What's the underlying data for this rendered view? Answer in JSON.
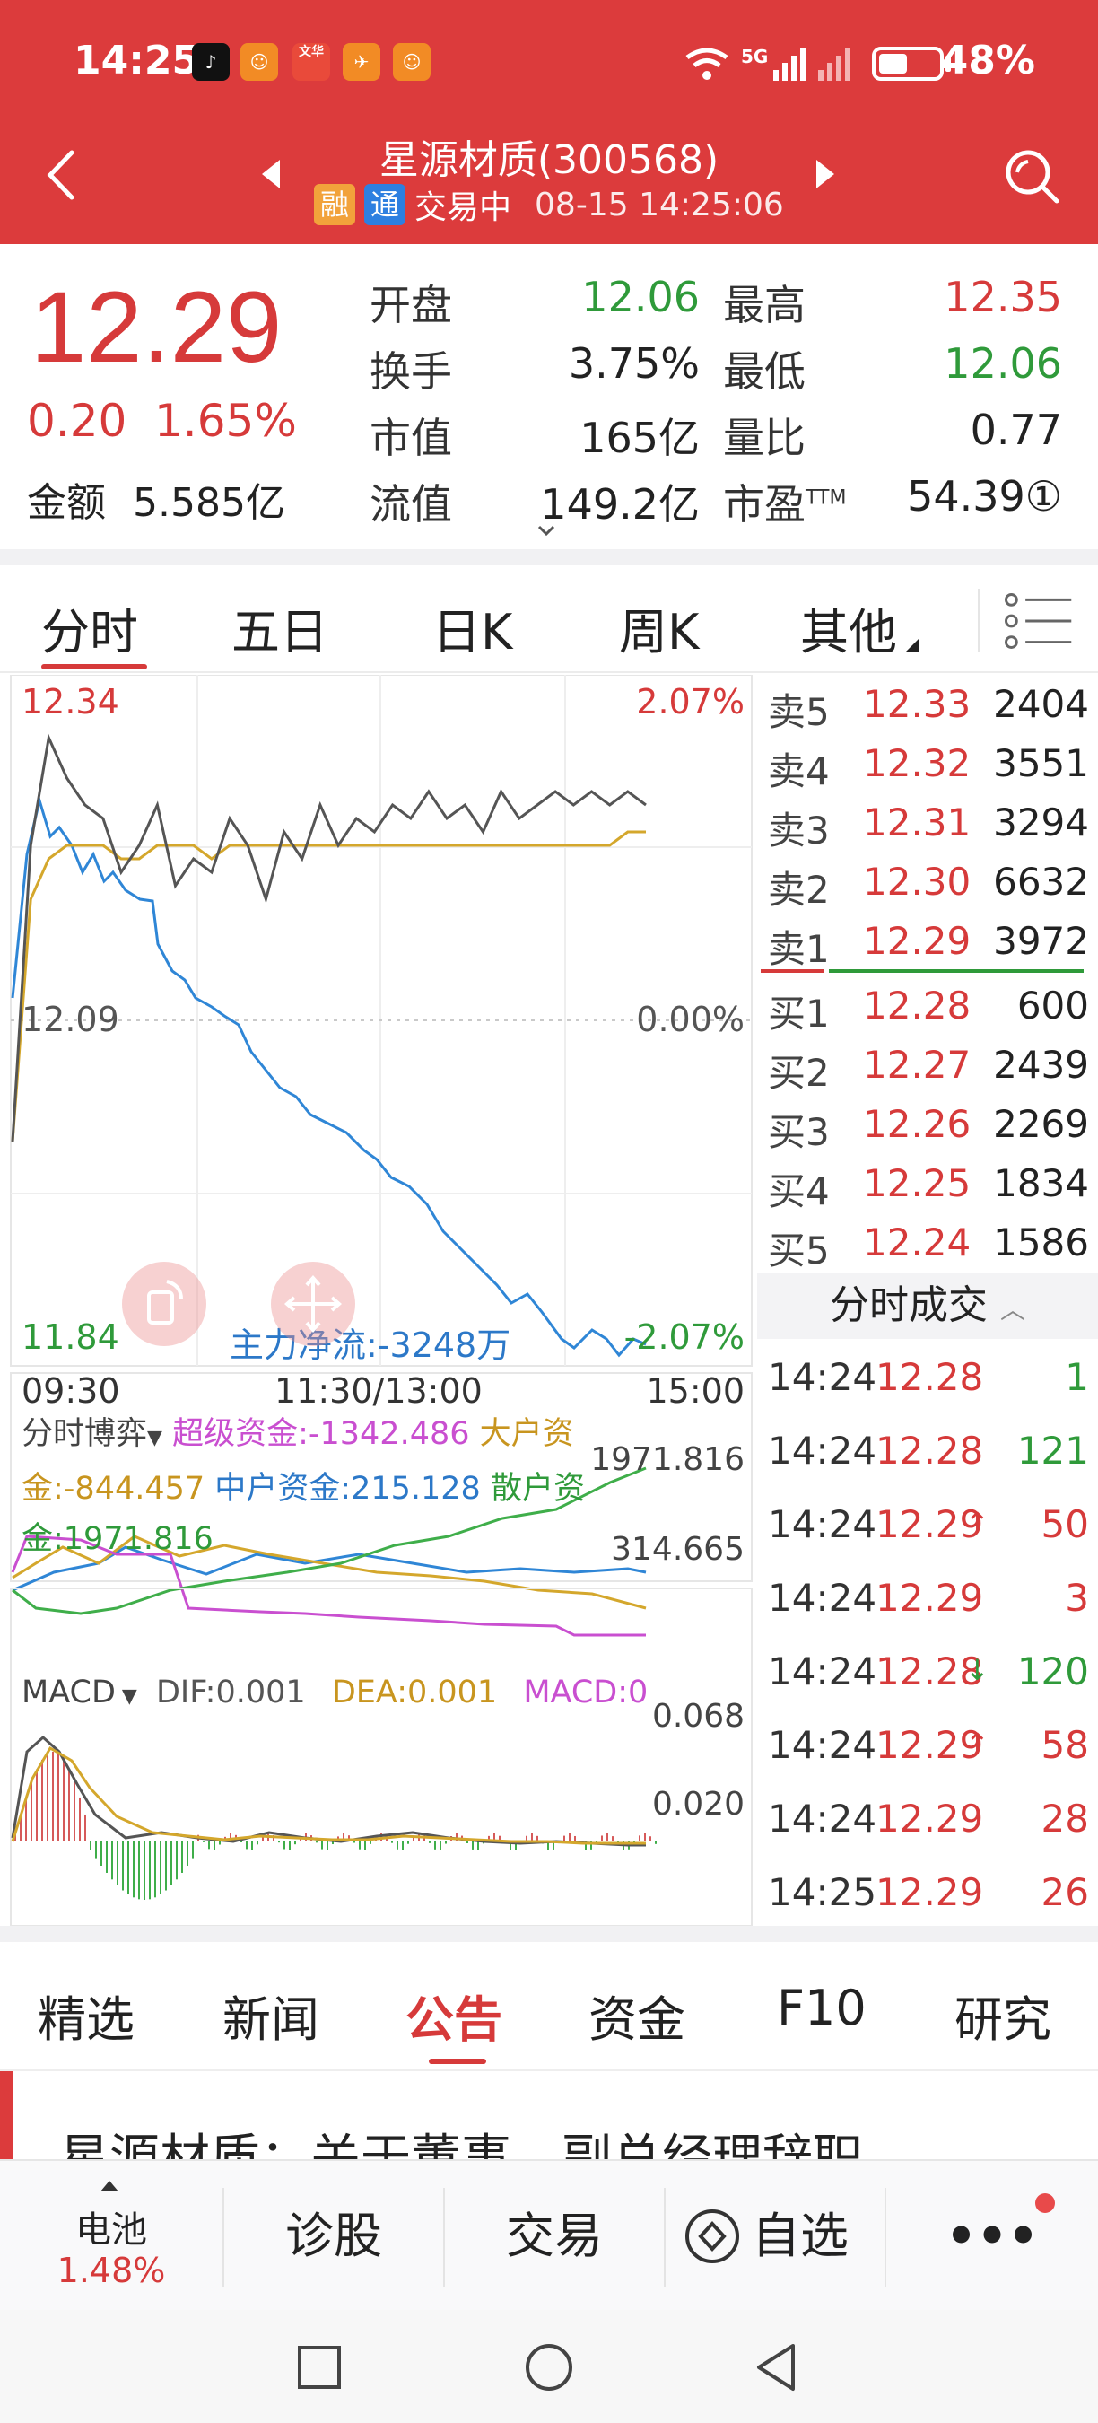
{
  "status": {
    "time": "14:25",
    "apps": [
      "TikTok",
      "Meituan",
      "文华财经",
      "Feishu",
      "Meituan"
    ],
    "network": "5G",
    "battery": "48%",
    "battery_fraction": 0.48
  },
  "header": {
    "title": "星源材质(300568)",
    "tag_rong": "融",
    "tag_tong": "通",
    "trading_status": "交易中",
    "datetime": "08-15 14:25:06",
    "back_icon": "chevron-left-icon",
    "search_icon": "search-icon"
  },
  "quote": {
    "price": "12.29",
    "change": "0.20",
    "change_pct": "1.65%",
    "amount_label": "金额",
    "amount": "5.585亿",
    "fields": [
      {
        "label": "开盘",
        "value": "12.06",
        "color": "#2f9a3a"
      },
      {
        "label": "最高",
        "value": "12.35",
        "color": "#d63a3a"
      },
      {
        "label": "换手",
        "value": "3.75%",
        "color": "#222222"
      },
      {
        "label": "最低",
        "value": "12.06",
        "color": "#2f9a3a"
      },
      {
        "label": "市值",
        "value": "165亿",
        "color": "#222222"
      },
      {
        "label": "量比",
        "value": "0.77",
        "color": "#222222"
      },
      {
        "label": "流值",
        "value": "149.2亿",
        "color": "#222222"
      },
      {
        "label": "市盈",
        "value": "54.39①",
        "color": "#222222"
      }
    ],
    "pe_superscript": "TTM"
  },
  "chart_tabs": [
    "分时",
    "五日",
    "日K",
    "周K",
    "其他"
  ],
  "chart": {
    "price_high": "12.34",
    "price_mid": "12.09",
    "price_low": "11.84",
    "pct_high": "2.07%",
    "pct_mid": "0.00%",
    "pct_low": "-2.07%",
    "main_flow": "主力净流:-3248万",
    "time_start": "09:30",
    "time_mid": "11:30/13:00",
    "time_end": "15:00"
  },
  "fund_panel": {
    "title": "分时博弈",
    "super": "超级资金:-1342.486",
    "big_line1": "大户资",
    "big_line2": "金:-844.457",
    "mid": "中户资金:215.128",
    "retail_line1": "散户资",
    "retail_line2": "金:1971.816",
    "axis_top": "1971.816",
    "axis_mid": "314.665"
  },
  "macd_panel": {
    "title": "MACD",
    "dif": "DIF:0.001",
    "dea": "DEA:0.001",
    "macd": "MACD:0",
    "axis_top": "0.068",
    "axis_mid": "0.020"
  },
  "chart_data": {
    "type": "line",
    "title": "",
    "x_range": [
      "09:30",
      "15:00"
    ],
    "ylim": [
      11.84,
      12.34
    ],
    "series": [
      {
        "values": [
          12.0,
          12.22,
          12.3,
          12.27,
          12.25,
          12.24,
          12.2,
          12.22,
          12.25,
          12.19,
          12.21,
          12.2,
          12.24,
          12.22,
          12.18,
          12.23,
          12.21,
          12.25,
          12.22,
          12.24,
          12.23,
          12.25,
          12.24,
          12.26,
          12.24,
          12.25,
          12.23,
          12.26,
          12.24,
          12.25,
          12.26,
          12.25,
          12.26,
          12.25,
          12.26,
          12.25
        ]
      },
      {
        "values": [
          12.0,
          12.18,
          12.21,
          12.22,
          12.22,
          12.22,
          12.21,
          12.21,
          12.22,
          12.22,
          12.22,
          12.21,
          12.22,
          12.22,
          12.22,
          12.22,
          12.22,
          12.22,
          12.22,
          12.22,
          12.22,
          12.22,
          12.22,
          12.22,
          12.22,
          12.22,
          12.22,
          12.22,
          12.22,
          12.22,
          12.22,
          12.22,
          12.22,
          12.22,
          12.23,
          12.23
        ]
      }
    ]
  },
  "order_book": {
    "asks": [
      {
        "label": "卖5",
        "price": "12.33",
        "vol": "2404"
      },
      {
        "label": "卖4",
        "price": "12.32",
        "vol": "3551"
      },
      {
        "label": "卖3",
        "price": "12.31",
        "vol": "3294"
      },
      {
        "label": "卖2",
        "price": "12.30",
        "vol": "6632"
      },
      {
        "label": "卖1",
        "price": "12.29",
        "vol": "3972"
      }
    ],
    "bids": [
      {
        "label": "买1",
        "price": "12.28",
        "vol": "600"
      },
      {
        "label": "买2",
        "price": "12.27",
        "vol": "2439"
      },
      {
        "label": "买3",
        "price": "12.26",
        "vol": "2269"
      },
      {
        "label": "买4",
        "price": "12.25",
        "vol": "1834"
      },
      {
        "label": "买5",
        "price": "12.24",
        "vol": "1586"
      }
    ]
  },
  "ticks": {
    "header": "分时成交",
    "rows": [
      {
        "time": "14:24",
        "price": "12.28",
        "arrow": "",
        "vol": "1",
        "dir": "sell"
      },
      {
        "time": "14:24",
        "price": "12.28",
        "arrow": "",
        "vol": "121",
        "dir": "sell"
      },
      {
        "time": "14:24",
        "price": "12.29",
        "arrow": "↑",
        "vol": "50",
        "dir": "buy"
      },
      {
        "time": "14:24",
        "price": "12.29",
        "arrow": "",
        "vol": "3",
        "dir": "buy"
      },
      {
        "time": "14:24",
        "price": "12.28",
        "arrow": "↓",
        "vol": "120",
        "dir": "sell"
      },
      {
        "time": "14:24",
        "price": "12.29",
        "arrow": "↑",
        "vol": "58",
        "dir": "buy"
      },
      {
        "time": "14:24",
        "price": "12.29",
        "arrow": "",
        "vol": "28",
        "dir": "buy"
      },
      {
        "time": "14:25",
        "price": "12.29",
        "arrow": "",
        "vol": "26",
        "dir": "buy"
      }
    ]
  },
  "news_tabs": [
    "精选",
    "新闻",
    "公告",
    "资金",
    "F10",
    "研究"
  ],
  "news_item": "星源材质：关于董事、副总经理辞职",
  "bottom_bar": {
    "battery_label": "电池",
    "battery_pct": "1.48%",
    "diagnose": "诊股",
    "trade": "交易",
    "watchlist": "自选",
    "more": "•••"
  }
}
